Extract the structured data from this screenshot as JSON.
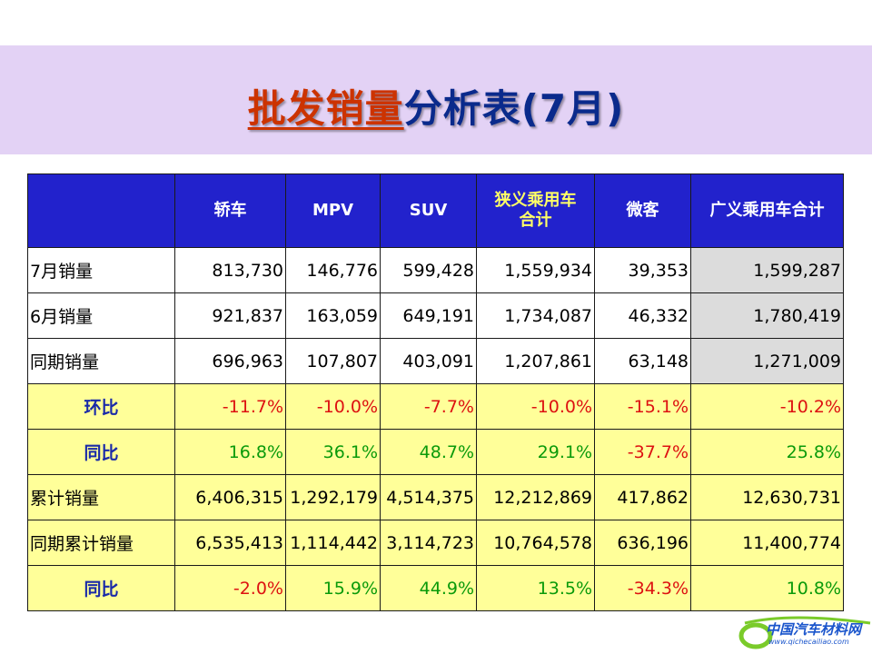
{
  "title": {
    "part1": "批发销量",
    "part2": "分析表(7月)"
  },
  "table": {
    "headers": [
      "",
      "轿车",
      "MPV",
      "SUV",
      "狭义乘用车\n合计",
      "微客",
      "广义乘用车合计"
    ],
    "header_line1": "狭义乘用车",
    "header_line2": "合计",
    "rows": [
      {
        "label": "7月销量",
        "values": [
          "813,730",
          "146,776",
          "599,428",
          "1,559,934",
          "39,353",
          "1,599,287"
        ]
      },
      {
        "label": "6月销量",
        "values": [
          "921,837",
          "163,059",
          "649,191",
          "1,734,087",
          "46,332",
          "1,780,419"
        ]
      },
      {
        "label": "同期销量",
        "values": [
          "696,963",
          "107,807",
          "403,091",
          "1,207,861",
          "63,148",
          "1,271,009"
        ]
      },
      {
        "label": "环比",
        "values": [
          "-11.7%",
          "-10.0%",
          "-7.7%",
          "-10.0%",
          "-15.1%",
          "-10.2%"
        ]
      },
      {
        "label": "同比",
        "values": [
          "16.8%",
          "36.1%",
          "48.7%",
          "29.1%",
          "-37.7%",
          "25.8%"
        ]
      },
      {
        "label": "累计销量",
        "values": [
          "6,406,315",
          "1,292,179",
          "4,514,375",
          "12,212,869",
          "417,862",
          "12,630,731"
        ]
      },
      {
        "label": "同期累计销量",
        "values": [
          "6,535,413",
          "1,114,442",
          "3,114,723",
          "10,764,578",
          "636,196",
          "11,400,774"
        ]
      },
      {
        "label": "同比",
        "values": [
          "-2.0%",
          "15.9%",
          "44.9%",
          "13.5%",
          "-34.3%",
          "10.8%"
        ]
      }
    ]
  },
  "colors": {
    "header_bg": "#2222cc",
    "yellow_row": "#ffff99",
    "negative": "#dd1111",
    "positive": "#0a9a0a",
    "banner": "#e3d2f5"
  },
  "watermark": {
    "name": "中国汽车材料网",
    "url": "www.qichecailiao.com"
  }
}
